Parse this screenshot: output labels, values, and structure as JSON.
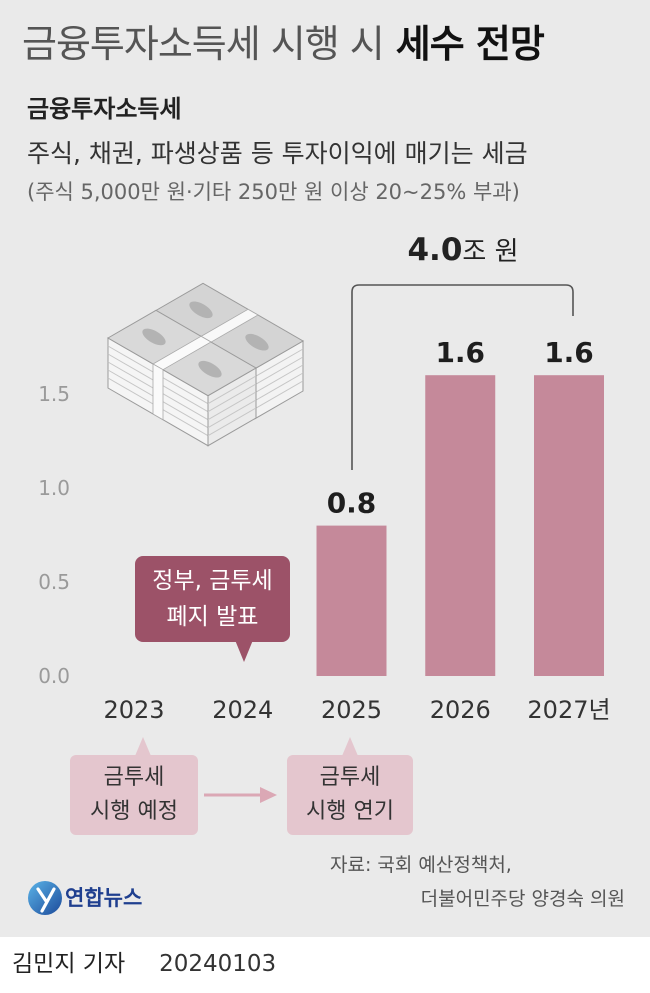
{
  "title": {
    "regular": "금융투자소득세 시행 시",
    "bold": "세수 전망"
  },
  "subtitle": "금융투자소득세",
  "description": "주식, 채권, 파생상품 등 투자이익에 매기는 세금",
  "note": "(주식 5,000만 원·기타 250만 원 이상 20~25% 부과)",
  "total": {
    "value": "4.0",
    "unit": "조 원"
  },
  "callout": {
    "line1": "정부, 금투세",
    "line2": "폐지 발표"
  },
  "timeline": [
    {
      "line1": "금투세",
      "line2": "시행 예정"
    },
    {
      "line1": "금투세",
      "line2": "시행 연기"
    }
  ],
  "source": {
    "line1": "자료: 국회 예산정책처,",
    "line2": "더불어민주당 양경숙 의원"
  },
  "logo": {
    "text": "연합뉴스",
    "icon": "yonhap-logo-icon"
  },
  "illustration": {
    "icon": "money-stack-icon"
  },
  "byline": {
    "author": "김민지 기자",
    "date": "20240103"
  },
  "colors": {
    "background": "#eaeaea",
    "bar": "#c5899a",
    "callout": "#9c5268",
    "timeline_box": "#e4c6ce",
    "arrow": "#dba8b5",
    "bracket": "#555555",
    "logo": "#1f3f8f"
  },
  "chart_data": {
    "type": "bar",
    "categories": [
      "2023",
      "2024",
      "2025",
      "2026",
      "2027년"
    ],
    "values": [
      null,
      null,
      0.8,
      1.6,
      1.6
    ],
    "ylim": [
      0,
      2.0
    ],
    "y_ticks": [
      0,
      0.5,
      1.0,
      1.5
    ],
    "y_tick_labels": [
      "0.0",
      "0.5",
      "1.0",
      "1.5"
    ],
    "grid": false
  }
}
